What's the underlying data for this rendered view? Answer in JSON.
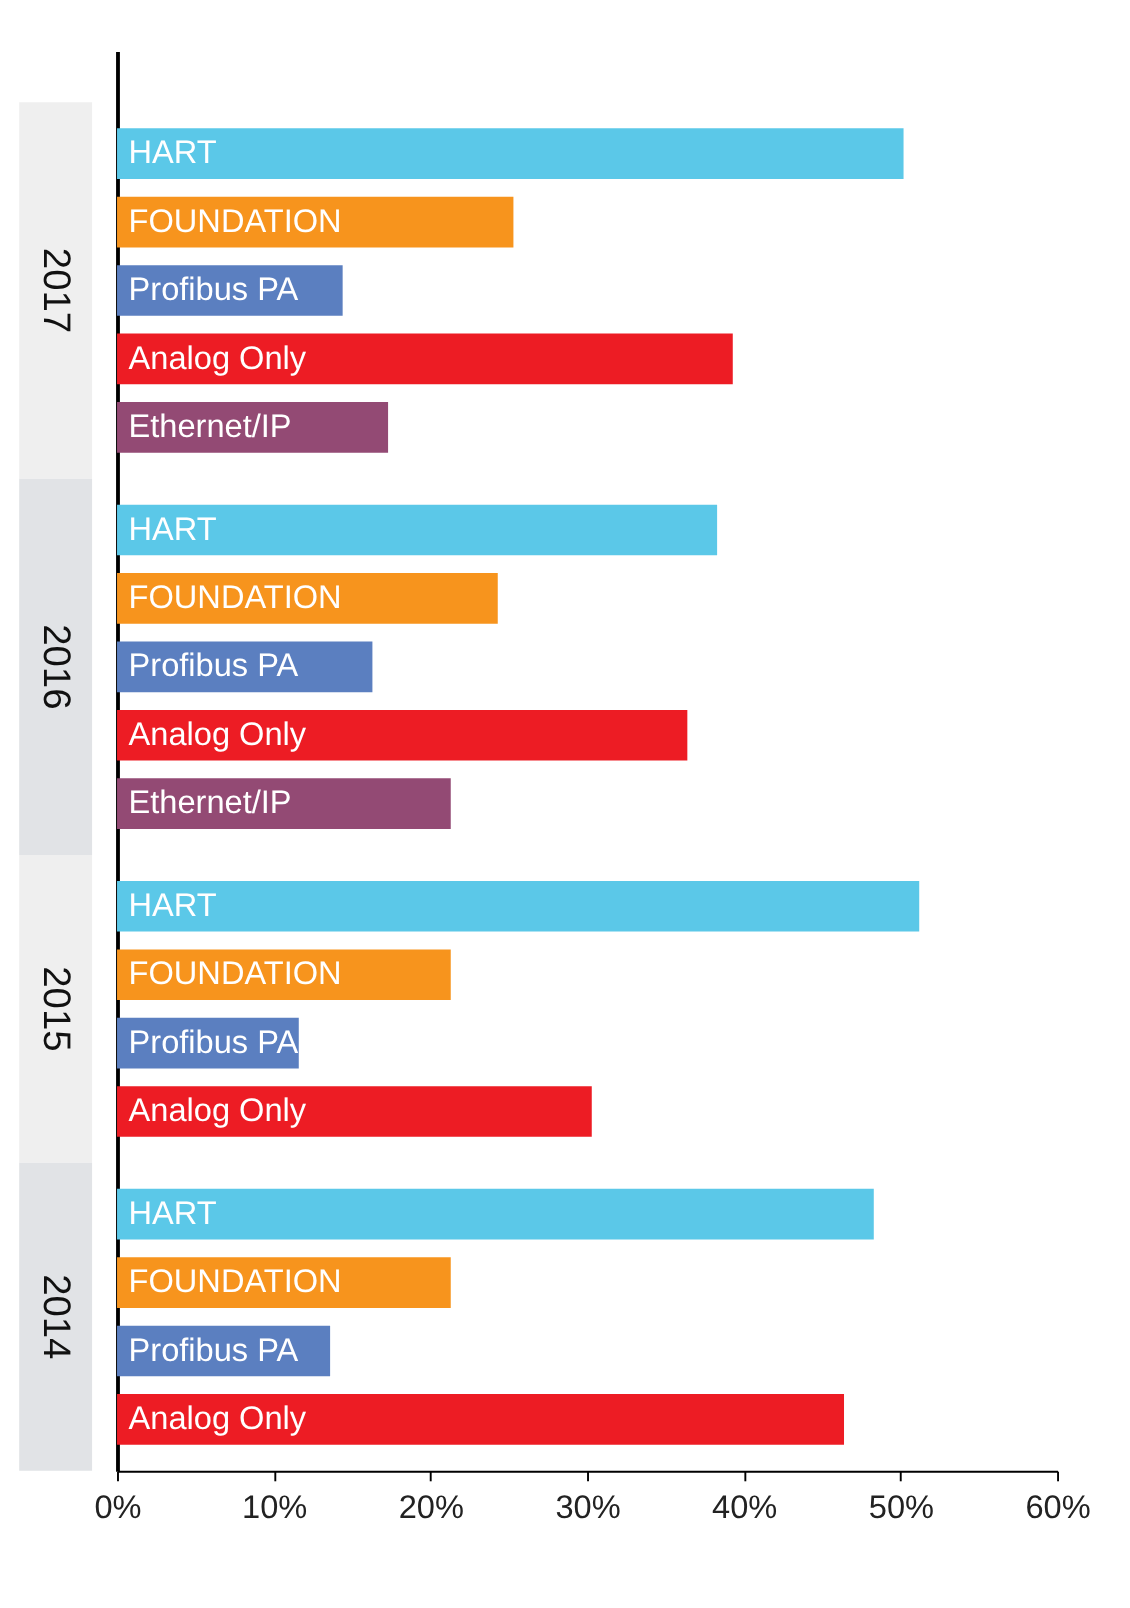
{
  "chart_data": {
    "type": "bar",
    "orientation": "horizontal",
    "categories": [
      "2017",
      "2016",
      "2015",
      "2014"
    ],
    "series": [
      {
        "name": "HART",
        "color": "#5bc8e8",
        "values": [
          50.2,
          38.3,
          51.2,
          48.3
        ]
      },
      {
        "name": "FOUNDATION",
        "color": "#f7941d",
        "values": [
          25.3,
          24.3,
          21.3,
          21.3
        ]
      },
      {
        "name": "Profibus PA",
        "color": "#5b7fc0",
        "values": [
          14.4,
          16.3,
          11.6,
          13.6
        ]
      },
      {
        "name": "Analog Only",
        "color": "#ed1c24",
        "values": [
          39.3,
          36.4,
          30.3,
          46.4
        ]
      },
      {
        "name": "Ethernet/IP",
        "color": "#934a74",
        "values": [
          17.3,
          21.3,
          null,
          null
        ]
      }
    ],
    "xlim": [
      0,
      60
    ],
    "xticks": [
      {
        "value": 0,
        "label": "0%"
      },
      {
        "value": 10,
        "label": "10%"
      },
      {
        "value": 20,
        "label": "20%"
      },
      {
        "value": 30,
        "label": "30%"
      },
      {
        "value": 40,
        "label": "40%"
      },
      {
        "value": 50,
        "label": "50%"
      },
      {
        "value": 60,
        "label": "60%"
      }
    ],
    "grid": false
  }
}
